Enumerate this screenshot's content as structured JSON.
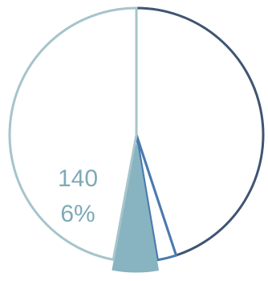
{
  "chart_data": {
    "type": "pie",
    "title": "",
    "legend": "none",
    "start": "top",
    "direction": "clockwise",
    "slices": [
      {
        "value": 1126,
        "fill": "#ffffff",
        "stroke": "#3f5572",
        "exploded": false
      },
      {
        "value": 60,
        "fill": "#ffffff",
        "stroke": "#4a7ab0",
        "exploded": false
      },
      {
        "value": 140,
        "fill": "#88b3c0",
        "stroke": "#88b3c0",
        "exploded": true,
        "label_value": "140",
        "label_percent": "6%",
        "label_color": "#7eaab6"
      },
      {
        "value": 1180,
        "fill": "#ffffff",
        "stroke": "#a6c4cc",
        "exploded": false
      }
    ]
  }
}
